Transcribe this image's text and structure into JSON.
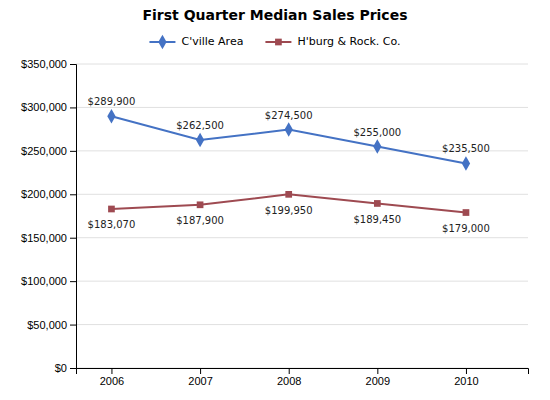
{
  "chart_data": {
    "type": "line",
    "title": "First Quarter Median Sales Prices",
    "x": [
      2006,
      2007,
      2008,
      2009,
      2010
    ],
    "xlim": [
      2005.6,
      2010.7
    ],
    "xticks": [
      2006,
      2007,
      2008,
      2009,
      2010
    ],
    "ylim": [
      0,
      350000
    ],
    "yticks": [
      {
        "value": 0,
        "label": "$0"
      },
      {
        "value": 50000,
        "label": "$50,000"
      },
      {
        "value": 100000,
        "label": "$100,000"
      },
      {
        "value": 150000,
        "label": "$150,000"
      },
      {
        "value": 200000,
        "label": "$200,000"
      },
      {
        "value": 250000,
        "label": "$250,000"
      },
      {
        "value": 300000,
        "label": "$300,000"
      },
      {
        "value": 350000,
        "label": "$350,000"
      }
    ],
    "grid": true,
    "legend": "top",
    "data_labels": true,
    "series": [
      {
        "name": "C'ville Area",
        "color": "#4472C4",
        "marker": "diamond",
        "values": [
          289900,
          262500,
          274500,
          255000,
          235500
        ],
        "value_labels": [
          "$289,900",
          "$262,500",
          "$274,500",
          "$255,000",
          "$235,500"
        ]
      },
      {
        "name": "H'burg & Rock. Co.",
        "color": "#9E4A51",
        "marker": "square",
        "values": [
          183070,
          187900,
          199950,
          189450,
          179000
        ],
        "value_labels": [
          "$183,070",
          "$187,900",
          "$199,950",
          "$189,450",
          "$179,000"
        ]
      }
    ]
  }
}
